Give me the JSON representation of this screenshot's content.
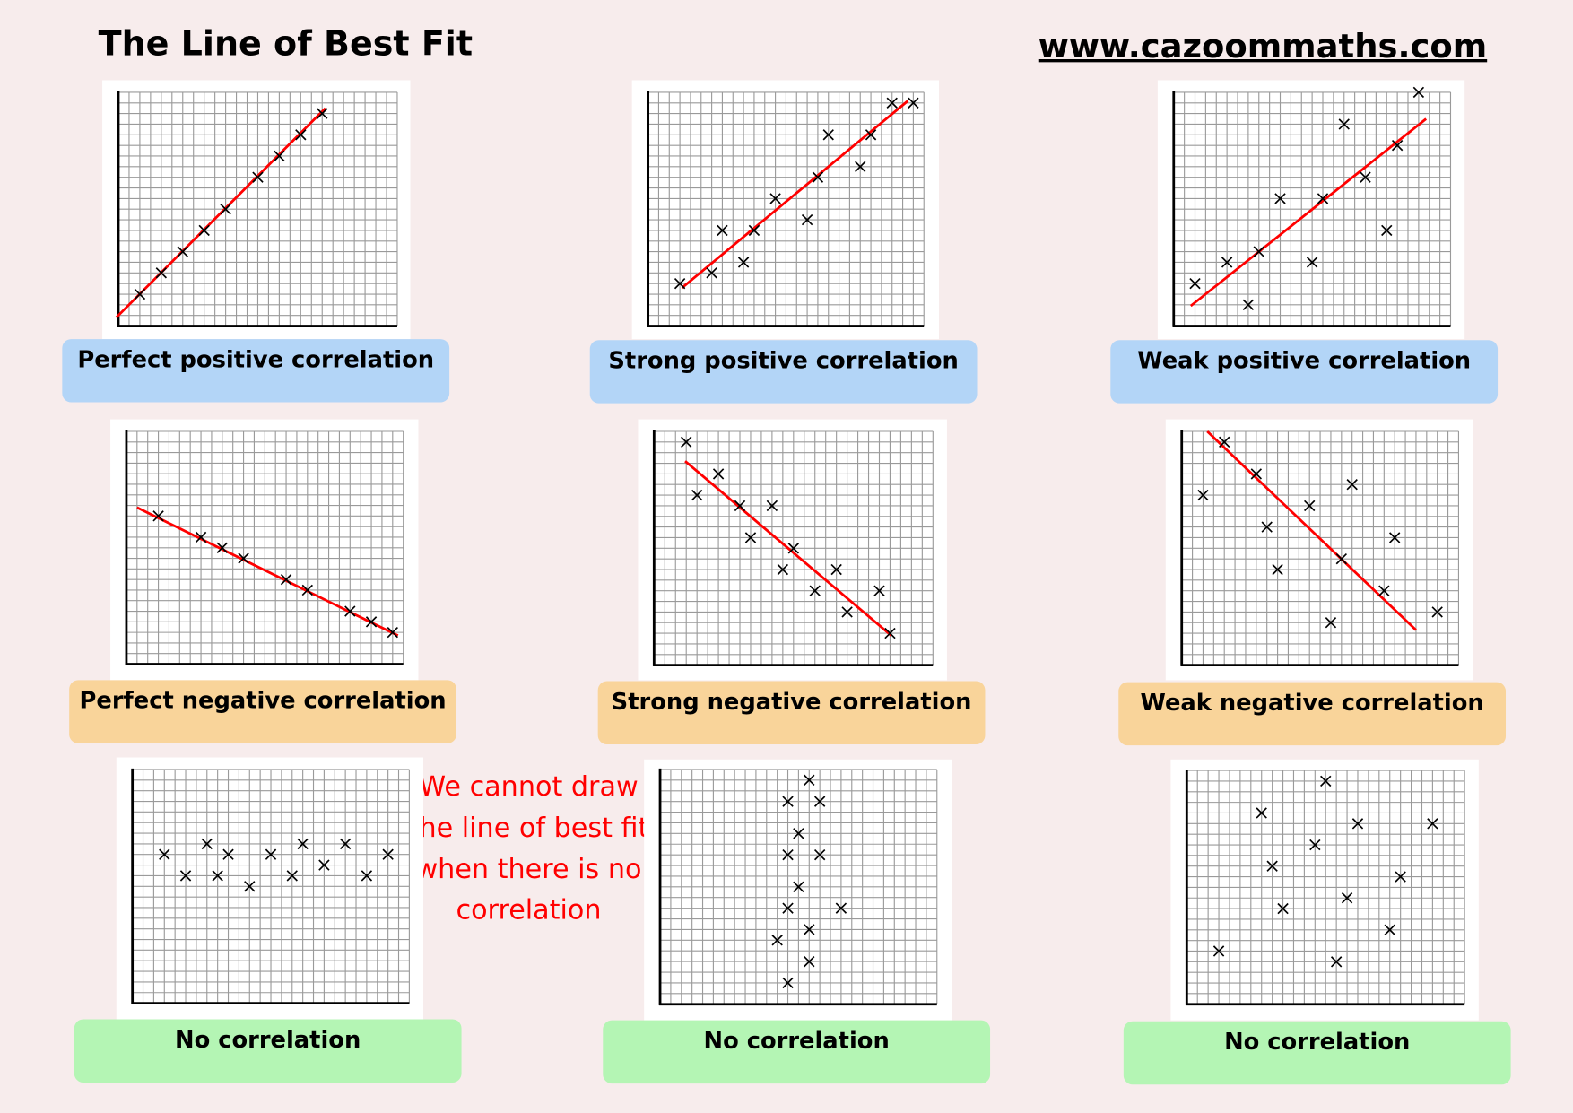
{
  "header": {
    "title": "The Line of Best Fit",
    "url": "www.cazoommaths.com"
  },
  "note": "We cannot draw the line of best fit when there is no correlation",
  "colors": {
    "positive": "#b3d5f7",
    "negative": "#f9d49a",
    "none": "#b4f5b4",
    "line": "#ff0000",
    "note": "#ff0000"
  },
  "chart_data": [
    {
      "type": "scatter",
      "label": "Perfect positive correlation",
      "category": "positive",
      "grid": true,
      "xlim": [
        0,
        26
      ],
      "ylim": [
        0,
        22
      ],
      "x": [
        2,
        4,
        6,
        8,
        10,
        13,
        15,
        17,
        19
      ],
      "y": [
        3,
        5,
        7,
        9,
        11,
        14,
        16,
        18,
        20
      ],
      "best_fit": [
        [
          -0.2,
          0.8
        ],
        [
          19.3,
          20.5
        ]
      ]
    },
    {
      "type": "scatter",
      "label": "Strong positive correlation",
      "category": "positive",
      "grid": true,
      "xlim": [
        0,
        26
      ],
      "ylim": [
        0,
        22
      ],
      "x": [
        3,
        6,
        7,
        9,
        10,
        12,
        15,
        16,
        17,
        20,
        21,
        23,
        25
      ],
      "y": [
        4,
        5,
        9,
        6,
        9,
        12,
        10,
        14,
        18,
        15,
        18,
        21,
        21
      ],
      "best_fit": [
        [
          3.2,
          3.6
        ],
        [
          24.5,
          21.2
        ]
      ]
    },
    {
      "type": "scatter",
      "label": "Weak positive correlation",
      "category": "positive",
      "grid": true,
      "xlim": [
        0,
        26
      ],
      "ylim": [
        0,
        22
      ],
      "x": [
        2,
        5,
        7,
        8,
        10,
        13,
        14,
        16,
        18,
        20,
        21,
        23
      ],
      "y": [
        4,
        6,
        2,
        7,
        12,
        6,
        12,
        19,
        14,
        9,
        17,
        22
      ],
      "best_fit": [
        [
          1.6,
          1.9
        ],
        [
          23.7,
          19.5
        ]
      ]
    },
    {
      "type": "scatter",
      "label": "Perfect negative correlation",
      "category": "negative",
      "grid": true,
      "xlim": [
        0,
        26
      ],
      "ylim": [
        0,
        22
      ],
      "x": [
        3,
        7,
        9,
        11,
        15,
        17,
        21,
        23,
        25
      ],
      "y": [
        14,
        12,
        11,
        10,
        8,
        7,
        5,
        4,
        3
      ],
      "best_fit": [
        [
          1,
          14.8
        ],
        [
          25.5,
          2.7
        ]
      ]
    },
    {
      "type": "scatter",
      "label": "Strong negative correlation",
      "category": "negative",
      "grid": true,
      "xlim": [
        0,
        26
      ],
      "ylim": [
        0,
        22
      ],
      "x": [
        3,
        4,
        6,
        8,
        9,
        11,
        12,
        13,
        15,
        17,
        18,
        21,
        22
      ],
      "y": [
        21,
        16,
        18,
        15,
        12,
        15,
        9,
        11,
        7,
        9,
        5,
        7,
        3
      ],
      "best_fit": [
        [
          2.9,
          19.2
        ],
        [
          22.1,
          2.8
        ]
      ]
    },
    {
      "type": "scatter",
      "label": "Weak negative correlation",
      "category": "negative",
      "grid": true,
      "xlim": [
        0,
        26
      ],
      "ylim": [
        0,
        22
      ],
      "x": [
        2,
        4,
        7,
        8,
        9,
        12,
        14,
        15,
        16,
        19,
        20,
        24
      ],
      "y": [
        16,
        21,
        18,
        13,
        9,
        15,
        4,
        10,
        17,
        7,
        12,
        5
      ],
      "best_fit": [
        [
          2.4,
          22
        ],
        [
          22,
          3.3
        ]
      ]
    },
    {
      "type": "scatter",
      "label": "No correlation",
      "category": "none",
      "grid": true,
      "xlim": [
        0,
        26
      ],
      "ylim": [
        0,
        22
      ],
      "x": [
        3,
        5,
        7,
        8,
        9,
        11,
        13,
        15,
        16,
        18,
        20,
        22,
        24
      ],
      "y": [
        14,
        12,
        15,
        12,
        14,
        11,
        14,
        12,
        15,
        13,
        15,
        12,
        14
      ]
    },
    {
      "type": "scatter",
      "label": "No correlation",
      "category": "none",
      "grid": true,
      "xlim": [
        0,
        26
      ],
      "ylim": [
        0,
        22
      ],
      "x": [
        14,
        12,
        15,
        13,
        12,
        15,
        13,
        12,
        17,
        14,
        11,
        14,
        12
      ],
      "y": [
        21,
        19,
        19,
        16,
        14,
        14,
        11,
        9,
        9,
        7,
        6,
        4,
        2
      ]
    },
    {
      "type": "scatter",
      "label": "No correlation",
      "category": "none",
      "grid": true,
      "xlim": [
        0,
        26
      ],
      "ylim": [
        0,
        22
      ],
      "x": [
        3,
        7,
        8,
        9,
        12,
        13,
        14,
        15,
        16,
        19,
        20,
        23
      ],
      "y": [
        5,
        18,
        13,
        9,
        15,
        21,
        4,
        10,
        17,
        7,
        12,
        17
      ]
    }
  ]
}
